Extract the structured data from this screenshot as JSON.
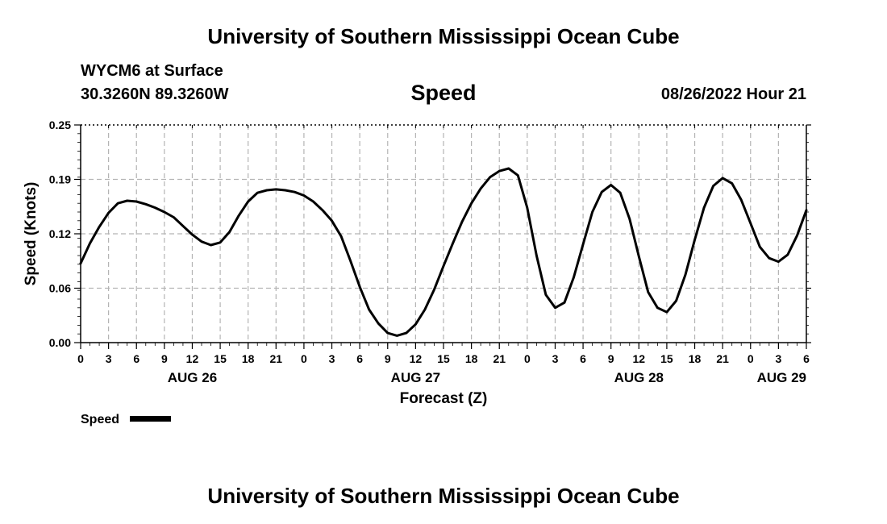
{
  "header": {
    "title_top": "University of Southern Mississippi Ocean Cube",
    "station": "WYCM6 at Surface",
    "coords": "30.3260N  89.3260W",
    "variable": "Speed",
    "datetime": "08/26/2022 Hour 21",
    "title_bottom": "University of Southern Mississippi Ocean Cube"
  },
  "chart_data": {
    "type": "line",
    "title": "Speed",
    "xlabel": "Forecast (Z)",
    "ylabel": "Speed (Knots)",
    "ylim": [
      0,
      0.25
    ],
    "yticks": [
      "0.00",
      "0.06",
      "0.12",
      "0.19",
      "0.25"
    ],
    "x_hour_range": [
      0,
      78
    ],
    "xtick_labels": [
      "0",
      "3",
      "6",
      "9",
      "12",
      "15",
      "18",
      "21",
      "0",
      "3",
      "6",
      "9",
      "12",
      "15",
      "18",
      "21",
      "0",
      "3",
      "6",
      "9",
      "12",
      "15",
      "18",
      "21",
      "0",
      "3",
      "6"
    ],
    "date_labels": [
      {
        "label": "AUG 26",
        "hour": 12
      },
      {
        "label": "AUG 27",
        "hour": 36
      },
      {
        "label": "AUG 28",
        "hour": 60
      },
      {
        "label": "AUG 29",
        "hour": 78
      }
    ],
    "grid": true,
    "series": [
      {
        "name": "Speed",
        "color": "#000000",
        "x": [
          0,
          1,
          2,
          3,
          4,
          5,
          6,
          7,
          8,
          9,
          10,
          11,
          12,
          13,
          14,
          15,
          16,
          17,
          18,
          19,
          20,
          21,
          22,
          23,
          24,
          25,
          26,
          27,
          28,
          29,
          30,
          31,
          32,
          33,
          34,
          35,
          36,
          37,
          38,
          39,
          40,
          41,
          42,
          43,
          44,
          45,
          46,
          47,
          48,
          49,
          50,
          51,
          52,
          53,
          54,
          55,
          56,
          57,
          58,
          59,
          60,
          61,
          62,
          63,
          64,
          65,
          66,
          67,
          68,
          69,
          70,
          71,
          72,
          73,
          74,
          75,
          76,
          77,
          78
        ],
        "y": [
          0.091,
          0.114,
          0.133,
          0.149,
          0.16,
          0.163,
          0.162,
          0.159,
          0.155,
          0.15,
          0.144,
          0.134,
          0.124,
          0.116,
          0.112,
          0.115,
          0.127,
          0.146,
          0.162,
          0.172,
          0.175,
          0.176,
          0.175,
          0.173,
          0.169,
          0.162,
          0.152,
          0.14,
          0.122,
          0.094,
          0.064,
          0.038,
          0.022,
          0.011,
          0.008,
          0.011,
          0.021,
          0.038,
          0.061,
          0.088,
          0.114,
          0.139,
          0.16,
          0.177,
          0.19,
          0.197,
          0.2,
          0.192,
          0.155,
          0.1,
          0.055,
          0.04,
          0.046,
          0.075,
          0.113,
          0.15,
          0.173,
          0.181,
          0.172,
          0.142,
          0.099,
          0.058,
          0.04,
          0.035,
          0.048,
          0.078,
          0.118,
          0.155,
          0.18,
          0.189,
          0.183,
          0.164,
          0.137,
          0.11,
          0.097,
          0.093,
          0.101,
          0.123,
          0.152
        ]
      }
    ],
    "legend": {
      "label": "Speed",
      "position": "bottom-left"
    }
  }
}
